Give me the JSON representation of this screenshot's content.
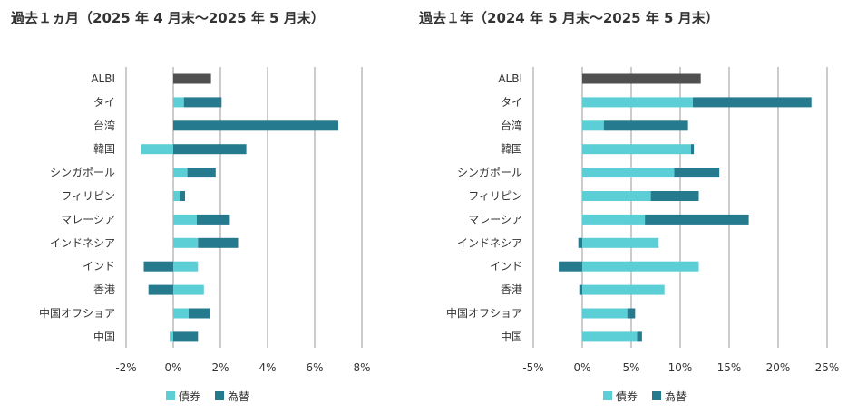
{
  "chart_data": [
    {
      "type": "bar",
      "stacked": true,
      "orientation": "horizontal",
      "title": "過去１ヵ月（2025 年 4 月末～2025 年 5 月末）",
      "categories": [
        "ALBI",
        "タイ",
        "台湾",
        "韓国",
        "シンガポール",
        "フィリピン",
        "マレーシア",
        "インドネシア",
        "インド",
        "香港",
        "中国オフショア",
        "中国"
      ],
      "series": [
        {
          "name": "債券",
          "values": [
            null,
            0.45,
            0.0,
            -1.35,
            0.6,
            0.3,
            1.0,
            1.05,
            1.05,
            1.3,
            0.65,
            -0.15
          ]
        },
        {
          "name": "為替",
          "values": [
            null,
            1.6,
            7.0,
            3.1,
            1.2,
            0.2,
            1.4,
            1.7,
            -1.25,
            -1.05,
            0.9,
            1.05
          ]
        },
        {
          "name": "ALBI",
          "values": [
            1.6,
            null,
            null,
            null,
            null,
            null,
            null,
            null,
            null,
            null,
            null,
            null
          ]
        }
      ],
      "xlim": [
        -2,
        8
      ],
      "xticks": [
        -2,
        0,
        2,
        4,
        6,
        8
      ],
      "xtick_labels": [
        "-2%",
        "0%",
        "2%",
        "4%",
        "6%",
        "8%"
      ],
      "xlabel": "",
      "ylabel": "",
      "legend": [
        {
          "label": "債券",
          "color": "#5ccfd6"
        },
        {
          "label": "為替",
          "color": "#267a8e"
        }
      ],
      "legend_position": "bottom-center"
    },
    {
      "type": "bar",
      "stacked": true,
      "orientation": "horizontal",
      "title": "過去１年（2024 年 5 月末～2025 年 5 月末）",
      "categories": [
        "ALBI",
        "タイ",
        "台湾",
        "韓国",
        "シンガポール",
        "フィリピン",
        "マレーシア",
        "インドネシア",
        "インド",
        "香港",
        "中国オフショア",
        "中国"
      ],
      "series": [
        {
          "name": "債券",
          "values": [
            null,
            11.3,
            2.2,
            11.1,
            9.4,
            7.0,
            6.4,
            7.8,
            11.9,
            8.4,
            4.6,
            5.6
          ]
        },
        {
          "name": "為替",
          "values": [
            null,
            12.1,
            8.6,
            0.3,
            4.6,
            4.9,
            10.6,
            -0.4,
            -2.4,
            -0.3,
            0.8,
            0.5
          ]
        },
        {
          "name": "ALBI",
          "values": [
            12.1,
            null,
            null,
            null,
            null,
            null,
            null,
            null,
            null,
            null,
            null,
            null
          ]
        }
      ],
      "xlim": [
        -5,
        25
      ],
      "xticks": [
        -5,
        0,
        5,
        10,
        15,
        20,
        25
      ],
      "xtick_labels": [
        "-5%",
        "0%",
        "5%",
        "10%",
        "15%",
        "20%",
        "25%"
      ],
      "xlabel": "",
      "ylabel": "",
      "legend": [
        {
          "label": "債券",
          "color": "#5ccfd6"
        },
        {
          "label": "為替",
          "color": "#267a8e"
        }
      ],
      "legend_position": "bottom-center"
    }
  ],
  "colors": {
    "bond": "#5ccfd6",
    "fx": "#267a8e",
    "albi": "#505050",
    "grid": "#999999",
    "text": "#333333"
  }
}
